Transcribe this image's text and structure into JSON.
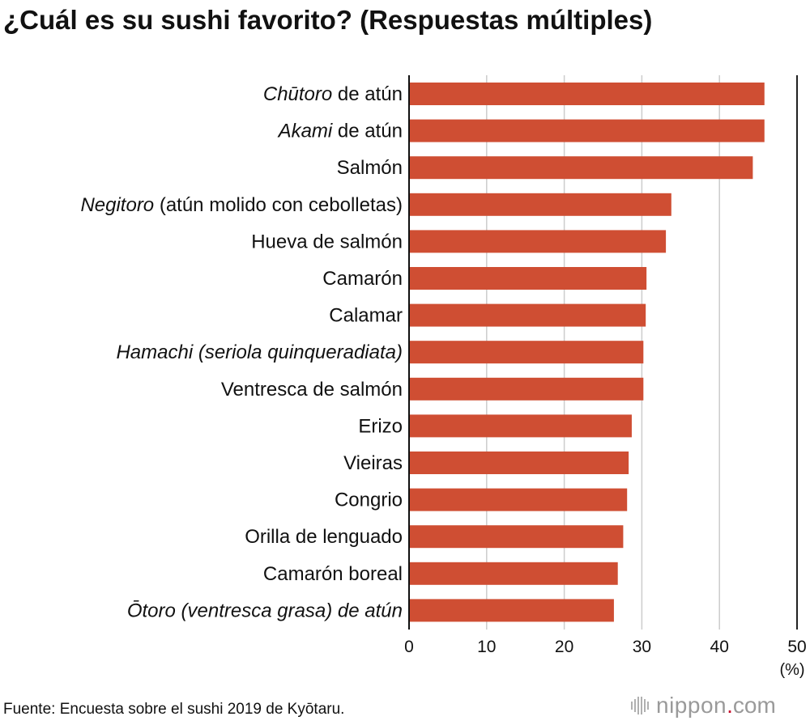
{
  "chart_data": {
    "type": "bar",
    "orientation": "horizontal",
    "title": "¿Cuál es su sushi favorito? (Respuestas múltiples)",
    "categories": [
      {
        "italic": "Chūtoro",
        "rest": " de atún"
      },
      {
        "italic": "Akami",
        "rest": " de atún"
      },
      {
        "italic": "",
        "rest": "Salmón"
      },
      {
        "italic": "Negitoro",
        "rest": " (atún molido con cebolletas)"
      },
      {
        "italic": "",
        "rest": "Hueva de salmón"
      },
      {
        "italic": "",
        "rest": "Camarón"
      },
      {
        "italic": "",
        "rest": "Calamar"
      },
      {
        "italic": "Hamachi (seriola quinqueradiata)",
        "rest": ""
      },
      {
        "italic": "",
        "rest": "Ventresca de salmón"
      },
      {
        "italic": "",
        "rest": "Erizo"
      },
      {
        "italic": "",
        "rest": "Vieiras"
      },
      {
        "italic": "",
        "rest": "Congrio"
      },
      {
        "italic": "",
        "rest": "Orilla de lenguado"
      },
      {
        "italic": "",
        "rest": "Camarón boreal"
      },
      {
        "italic": "Ōtoro (ventresca grasa) de atún",
        "rest": ""
      }
    ],
    "values": [
      45.8,
      45.8,
      44.3,
      33.8,
      33.1,
      30.6,
      30.5,
      30.2,
      30.2,
      28.7,
      28.3,
      28.1,
      27.6,
      26.9,
      26.4
    ],
    "xlim": [
      0,
      50
    ],
    "xticks": [
      "0",
      "10",
      "20",
      "30",
      "40",
      "50"
    ],
    "xunit": "(%)",
    "grid": true,
    "bar_color": "#cf4e33",
    "grid_color": "#cccccc"
  },
  "source": "Fuente: Encuesta sobre el sushi 2019 de Kyōtaru.",
  "brand": {
    "name": "nippon",
    "dot": ".",
    "tld": "com",
    "dot_color": "#c8102e",
    "icon": "nippon-logo-icon"
  }
}
